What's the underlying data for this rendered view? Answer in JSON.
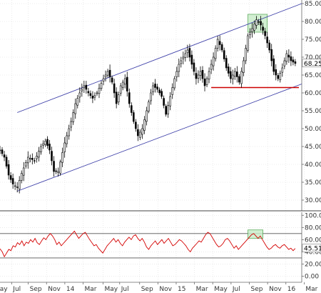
{
  "chart_data": [
    {
      "type": "candlestick",
      "panel": "price",
      "ylim": [
        27,
        86
      ],
      "yticks": [
        30,
        35,
        40,
        45,
        50,
        55,
        60,
        65,
        70,
        75,
        80,
        85
      ],
      "ytick_labels": [
        "30.00",
        "35.00",
        "40.00",
        "45.00",
        "50.00",
        "55.00",
        "60.00",
        "65.00",
        "70.00",
        "75.00",
        "80.00",
        "85.00"
      ],
      "last_value": 68.25,
      "last_value_label": "68.25",
      "price_path": [
        [
          0,
          44
        ],
        [
          2,
          42
        ],
        [
          4,
          37
        ],
        [
          6,
          34.5
        ],
        [
          8,
          33.5
        ],
        [
          10,
          37.5
        ],
        [
          13,
          42
        ],
        [
          16,
          41
        ],
        [
          19,
          45
        ],
        [
          21,
          46.5
        ],
        [
          23,
          44
        ],
        [
          25,
          38
        ],
        [
          27,
          38
        ],
        [
          30,
          46
        ],
        [
          33,
          52
        ],
        [
          35,
          57
        ],
        [
          37,
          60
        ],
        [
          39,
          62
        ],
        [
          41,
          60
        ],
        [
          43,
          58.5
        ],
        [
          45,
          60
        ],
        [
          48,
          64
        ],
        [
          50,
          66
        ],
        [
          52,
          63
        ],
        [
          54,
          57
        ],
        [
          56,
          62
        ],
        [
          58,
          64
        ],
        [
          60,
          57
        ],
        [
          62,
          52
        ],
        [
          64,
          48
        ],
        [
          66,
          50
        ],
        [
          68,
          55
        ],
        [
          70,
          60
        ],
        [
          71,
          62
        ],
        [
          73,
          61
        ],
        [
          75,
          59
        ],
        [
          77,
          54
        ],
        [
          79,
          59
        ],
        [
          81,
          64
        ],
        [
          83,
          68
        ],
        [
          85,
          70
        ],
        [
          87,
          72
        ],
        [
          89,
          68
        ],
        [
          91,
          64
        ],
        [
          93,
          66
        ],
        [
          95,
          62
        ],
        [
          97,
          66
        ],
        [
          99,
          70
        ],
        [
          101,
          75
        ],
        [
          103,
          72
        ],
        [
          105,
          67
        ],
        [
          107,
          64
        ],
        [
          109,
          66
        ],
        [
          111,
          63
        ],
        [
          113,
          69
        ],
        [
          115,
          76
        ],
        [
          117,
          78
        ],
        [
          119,
          80.5
        ],
        [
          121,
          79
        ],
        [
          123,
          76
        ],
        [
          125,
          72
        ],
        [
          127,
          66
        ],
        [
          129,
          64
        ],
        [
          131,
          67
        ],
        [
          133,
          71
        ],
        [
          135,
          69
        ],
        [
          137,
          68.25
        ]
      ],
      "channel_upper": [
        [
          8,
          54.5
        ],
        [
          140,
          85
        ]
      ],
      "channel_lower": [
        [
          8,
          32.5
        ],
        [
          140,
          62.5
        ]
      ],
      "support_level": 61.5,
      "support_range": [
        98,
        140
      ],
      "highlight_box": {
        "x": [
          115,
          124
        ],
        "y": [
          77,
          82
        ]
      }
    },
    {
      "type": "line",
      "panel": "oscillator",
      "ylim": [
        -10,
        105
      ],
      "yticks": [
        0,
        20,
        40,
        60,
        80,
        100
      ],
      "ytick_labels": [
        "0.00",
        "20.00",
        "40.00",
        "60.00",
        "80.00",
        "100.00"
      ],
      "overbought": 70,
      "oversold": 30,
      "last_value": 45.51,
      "last_value_label": "45.51",
      "series": [
        {
          "values": [
            45,
            40,
            32,
            38,
            44,
            42,
            50,
            48,
            55,
            52,
            58,
            50,
            56,
            54,
            60,
            56,
            62,
            55,
            52,
            58,
            63,
            60,
            66,
            70,
            66,
            60,
            52,
            56,
            50,
            54,
            58,
            62,
            66,
            70,
            74,
            68,
            62,
            66,
            70,
            72,
            66,
            60,
            55,
            50,
            52,
            46,
            42,
            38,
            44,
            50,
            54,
            58,
            62,
            56,
            60,
            54,
            50,
            56,
            60,
            64,
            60,
            66,
            68,
            62,
            58,
            62,
            56,
            48,
            44,
            50,
            54,
            58,
            52,
            56,
            60,
            54,
            58,
            62,
            56,
            50,
            52,
            56,
            60,
            58,
            54,
            50,
            44,
            40,
            46,
            50,
            54,
            58,
            56,
            62,
            68,
            72,
            70,
            64,
            58,
            52,
            48,
            50,
            54,
            60,
            62,
            58,
            52,
            46,
            50,
            44,
            48,
            52,
            56,
            60,
            64,
            68,
            70,
            66,
            62,
            66,
            60,
            54,
            48,
            44,
            46,
            50,
            52,
            48,
            46,
            50,
            52,
            48,
            44,
            46,
            42,
            45.5
          ],
          "color": "#d40000"
        }
      ],
      "highlight_box": {
        "x": [
          115,
          122
        ],
        "y": [
          62,
          76
        ]
      }
    }
  ],
  "x_axis": {
    "labels": [
      "Jul",
      "Sep",
      "Nov",
      "14",
      "Mar",
      "May",
      "Jul",
      "Sep",
      "Nov",
      "15",
      "Mar",
      "May",
      "Jul",
      "Sep",
      "Nov",
      "16",
      "Mar"
    ],
    "positions": [
      7,
      17,
      28,
      39,
      50,
      62,
      72,
      84,
      95,
      106,
      117,
      128,
      139,
      150,
      161,
      172,
      183
    ],
    "left_partial_label": "May"
  },
  "colors": {
    "background": "#ffffff",
    "grid": "#dedede",
    "price_bars": "#000000",
    "channel": "#3d3fa8",
    "support": "#cc0000",
    "highlight_fill": "#c8ecc8",
    "highlight_stroke": "#3c9a3c",
    "oscillator_line": "#d40000",
    "threshold_line": "#555555",
    "axis": "#666666"
  }
}
